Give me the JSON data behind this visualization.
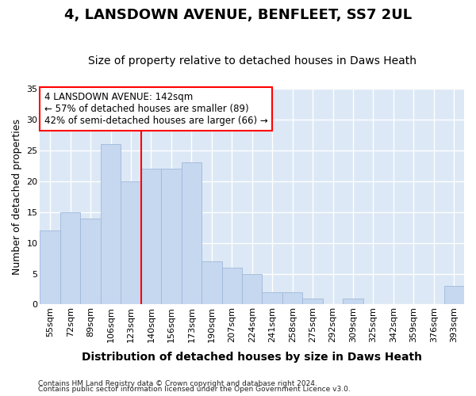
{
  "title1": "4, LANSDOWN AVENUE, BENFLEET, SS7 2UL",
  "title2": "Size of property relative to detached houses in Daws Heath",
  "xlabel": "Distribution of detached houses by size in Daws Heath",
  "ylabel": "Number of detached properties",
  "categories": [
    "55sqm",
    "72sqm",
    "89sqm",
    "106sqm",
    "123sqm",
    "140sqm",
    "156sqm",
    "173sqm",
    "190sqm",
    "207sqm",
    "224sqm",
    "241sqm",
    "258sqm",
    "275sqm",
    "292sqm",
    "309sqm",
    "325sqm",
    "342sqm",
    "359sqm",
    "376sqm",
    "393sqm"
  ],
  "values": [
    12,
    15,
    14,
    26,
    20,
    22,
    22,
    23,
    7,
    6,
    5,
    2,
    2,
    1,
    0,
    1,
    0,
    0,
    0,
    0,
    3
  ],
  "bar_color": "#c5d8f0",
  "bar_edge_color": "#a0b8d8",
  "vline_x": 4.5,
  "vline_color": "red",
  "annotation_text": "4 LANSDOWN AVENUE: 142sqm\n← 57% of detached houses are smaller (89)\n42% of semi-detached houses are larger (66) →",
  "annotation_box_color": "white",
  "annotation_box_edge": "red",
  "ylim": [
    0,
    35
  ],
  "yticks": [
    0,
    5,
    10,
    15,
    20,
    25,
    30,
    35
  ],
  "bg_color": "#dce8f5",
  "grid_color": "white",
  "footer1": "Contains HM Land Registry data © Crown copyright and database right 2024.",
  "footer2": "Contains public sector information licensed under the Open Government Licence v3.0.",
  "title1_fontsize": 13,
  "title2_fontsize": 10,
  "xlabel_fontsize": 10,
  "ylabel_fontsize": 9,
  "tick_fontsize": 8,
  "annotation_fontsize": 8.5,
  "footer_fontsize": 6.5
}
